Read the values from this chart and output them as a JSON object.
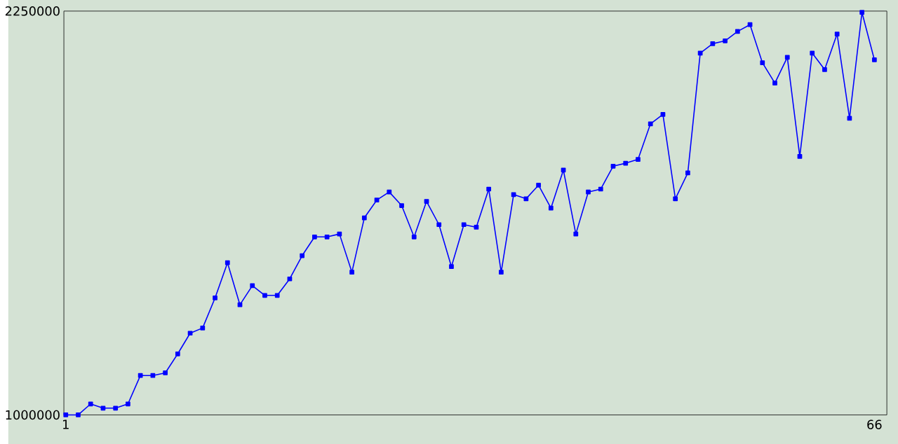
{
  "chart_data": {
    "type": "line",
    "x": [
      1,
      2,
      3,
      4,
      5,
      6,
      7,
      8,
      9,
      10,
      11,
      12,
      13,
      14,
      15,
      16,
      17,
      18,
      19,
      20,
      21,
      22,
      23,
      24,
      25,
      26,
      27,
      28,
      29,
      30,
      31,
      32,
      33,
      34,
      35,
      36,
      37,
      38,
      39,
      40,
      41,
      42,
      43,
      44,
      45,
      46,
      47,
      48,
      49,
      50,
      51,
      52,
      53,
      54,
      55,
      56,
      57,
      58,
      59,
      60,
      61,
      62,
      63,
      64,
      65,
      66
    ],
    "values": [
      1000000,
      1000000,
      1034000,
      1021000,
      1021000,
      1034000,
      1122000,
      1122000,
      1130000,
      1189000,
      1253000,
      1269000,
      1362000,
      1471000,
      1341000,
      1400000,
      1370000,
      1370000,
      1421000,
      1493000,
      1551000,
      1551000,
      1560000,
      1442000,
      1610000,
      1665000,
      1690000,
      1648000,
      1551000,
      1661000,
      1589000,
      1459000,
      1589000,
      1581000,
      1699000,
      1442000,
      1682000,
      1669000,
      1711000,
      1640000,
      1758000,
      1560000,
      1690000,
      1699000,
      1770000,
      1779000,
      1791000,
      1901000,
      1930000,
      1669000,
      1749000,
      2120000,
      2149000,
      2158000,
      2187000,
      2208000,
      2090000,
      2027000,
      2107000,
      1800000,
      2120000,
      2069000,
      2179000,
      1918000,
      2246000,
      2099000
    ],
    "color": "#0000ff",
    "marker": "square",
    "line_style": "solid",
    "xlim": [
      0.85,
      67
    ],
    "ylim": [
      1000000,
      2250000
    ],
    "xticks": [
      1,
      66
    ],
    "yticks": [
      1000000,
      2250000
    ]
  }
}
